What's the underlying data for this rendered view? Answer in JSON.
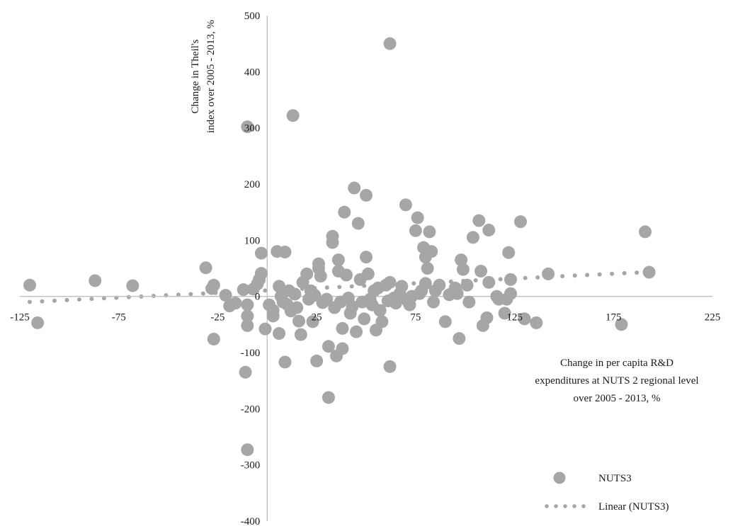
{
  "chart_data": {
    "type": "scatter",
    "title": "",
    "xlabel": [
      "Change in per capita R&D",
      "expenditures at NUTS 2 regional level",
      "over 2005 - 2013, %"
    ],
    "ylabel": [
      "Change in Theil's",
      "index over 2005 - 2013, %"
    ],
    "xlim": [
      -125,
      225
    ],
    "ylim": [
      -400,
      500
    ],
    "x_ticks": [
      "-125",
      "-75",
      "-25",
      "25",
      "75",
      "125",
      "175",
      "225"
    ],
    "y_ticks": [
      "500",
      "400",
      "300",
      "200",
      "100",
      "0",
      "-100",
      "-200",
      "-300",
      "-400"
    ],
    "colors": {
      "points": "#a6a6a6",
      "trend": "#a6a6a6",
      "axis": "#bfbfbf",
      "text": "#1a1a1a"
    },
    "legend": {
      "position": "bottom-right",
      "entries": [
        "NUTS3",
        "Linear (NUTS3)"
      ]
    },
    "series": [
      {
        "name": "NUTS3",
        "kind": "scatter",
        "points": [
          [
            -120,
            20
          ],
          [
            -116,
            -47
          ],
          [
            -87,
            28
          ],
          [
            -68,
            19
          ],
          [
            -31,
            51
          ],
          [
            -27,
            20
          ],
          [
            -28,
            14
          ],
          [
            -27,
            -76
          ],
          [
            -21,
            2
          ],
          [
            -19,
            -17
          ],
          [
            -16,
            -12
          ],
          [
            -12,
            12
          ],
          [
            -11,
            -135
          ],
          [
            -10,
            302
          ],
          [
            -10,
            -15
          ],
          [
            -10,
            -35
          ],
          [
            -10,
            -52
          ],
          [
            -10,
            -273
          ],
          [
            -7,
            13
          ],
          [
            -5,
            22
          ],
          [
            -4,
            30
          ],
          [
            -3,
            41
          ],
          [
            -3,
            77
          ],
          [
            -1,
            -58
          ],
          [
            1,
            -15
          ],
          [
            3,
            -25
          ],
          [
            3,
            -35
          ],
          [
            5,
            80
          ],
          [
            6,
            -66
          ],
          [
            6,
            18
          ],
          [
            7,
            0
          ],
          [
            8,
            -10
          ],
          [
            9,
            79
          ],
          [
            9,
            -117
          ],
          [
            10,
            -14
          ],
          [
            11,
            10
          ],
          [
            12,
            -26
          ],
          [
            13,
            322
          ],
          [
            14,
            4
          ],
          [
            15,
            -20
          ],
          [
            16,
            -44
          ],
          [
            17,
            -68
          ],
          [
            18,
            25
          ],
          [
            20,
            40
          ],
          [
            21,
            -5
          ],
          [
            22,
            10
          ],
          [
            23,
            -45
          ],
          [
            24,
            2
          ],
          [
            25,
            -115
          ],
          [
            26,
            50
          ],
          [
            26,
            58
          ],
          [
            27,
            36
          ],
          [
            28,
            -11
          ],
          [
            30,
            -5
          ],
          [
            31,
            -89
          ],
          [
            31,
            -180
          ],
          [
            33,
            107
          ],
          [
            33,
            96
          ],
          [
            34,
            -20
          ],
          [
            35,
            -106
          ],
          [
            36,
            45
          ],
          [
            36,
            65
          ],
          [
            37,
            -10
          ],
          [
            38,
            -93
          ],
          [
            38,
            -57
          ],
          [
            39,
            150
          ],
          [
            40,
            38
          ],
          [
            41,
            -3
          ],
          [
            42,
            -30
          ],
          [
            43,
            -18
          ],
          [
            44,
            193
          ],
          [
            45,
            -63
          ],
          [
            46,
            130
          ],
          [
            47,
            30
          ],
          [
            48,
            -10
          ],
          [
            49,
            -40
          ],
          [
            50,
            70
          ],
          [
            50,
            180
          ],
          [
            51,
            40
          ],
          [
            52,
            -5
          ],
          [
            53,
            -15
          ],
          [
            54,
            10
          ],
          [
            55,
            -60
          ],
          [
            56,
            15
          ],
          [
            57,
            -25
          ],
          [
            58,
            -45
          ],
          [
            60,
            20
          ],
          [
            61,
            -8
          ],
          [
            62,
            25
          ],
          [
            62,
            450
          ],
          [
            62,
            -125
          ],
          [
            64,
            -3
          ],
          [
            65,
            -12
          ],
          [
            67,
            5
          ],
          [
            68,
            18
          ],
          [
            70,
            163
          ],
          [
            71,
            -8
          ],
          [
            72,
            -15
          ],
          [
            73,
            0
          ],
          [
            75,
            117
          ],
          [
            76,
            140
          ],
          [
            77,
            5
          ],
          [
            78,
            10
          ],
          [
            79,
            87
          ],
          [
            80,
            70
          ],
          [
            80,
            23
          ],
          [
            81,
            50
          ],
          [
            82,
            115
          ],
          [
            83,
            80
          ],
          [
            84,
            -10
          ],
          [
            85,
            10
          ],
          [
            87,
            20
          ],
          [
            90,
            -45
          ],
          [
            92,
            3
          ],
          [
            95,
            15
          ],
          [
            96,
            5
          ],
          [
            97,
            -75
          ],
          [
            98,
            65
          ],
          [
            99,
            48
          ],
          [
            101,
            20
          ],
          [
            102,
            -10
          ],
          [
            104,
            105
          ],
          [
            107,
            135
          ],
          [
            108,
            45
          ],
          [
            109,
            -52
          ],
          [
            111,
            -38
          ],
          [
            112,
            118
          ],
          [
            112,
            25
          ],
          [
            116,
            0
          ],
          [
            117,
            -5
          ],
          [
            120,
            -30
          ],
          [
            121,
            -5
          ],
          [
            122,
            78
          ],
          [
            123,
            30
          ],
          [
            123,
            5
          ],
          [
            128,
            133
          ],
          [
            130,
            -40
          ],
          [
            136,
            -47
          ],
          [
            142,
            40
          ],
          [
            179,
            -50
          ],
          [
            191,
            115
          ],
          [
            193,
            43
          ]
        ]
      },
      {
        "name": "Linear (NUTS3)",
        "kind": "trendline",
        "slope": 0.17,
        "intercept": 10.6
      }
    ]
  }
}
